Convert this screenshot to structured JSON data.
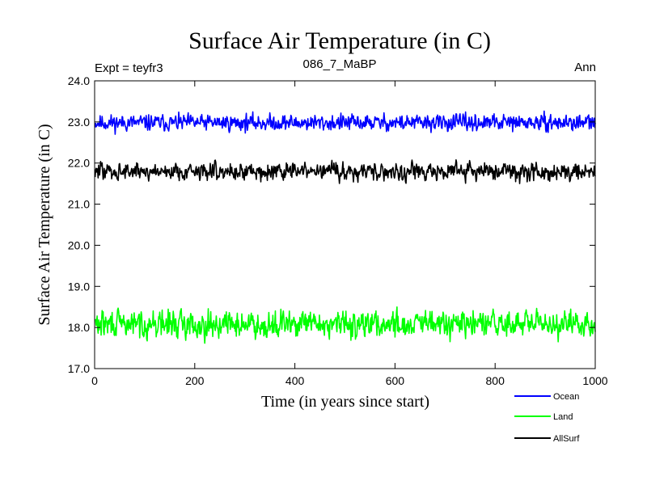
{
  "chart_data": {
    "type": "line",
    "title": "Surface Air Temperature (in C)",
    "subtitle_left": "Expt = teyfr3",
    "subtitle_center": "086_7_MaBP",
    "subtitle_right": "Ann",
    "xlabel": "Time (in years since start)",
    "ylabel": "Surface Air Temperature (in C)",
    "xlim": [
      0,
      1000
    ],
    "ylim": [
      17.0,
      24.0
    ],
    "x_ticks": [
      0,
      200,
      400,
      600,
      800,
      1000
    ],
    "x_tick_labels": [
      "0",
      "200",
      "400",
      "600",
      "800",
      "1000"
    ],
    "y_ticks": [
      17.0,
      18.0,
      19.0,
      20.0,
      21.0,
      22.0,
      23.0,
      24.0
    ],
    "y_tick_labels": [
      "17.0",
      "18.0",
      "19.0",
      "20.0",
      "21.0",
      "22.0",
      "23.0",
      "24.0"
    ],
    "x_start": 1,
    "x_step": 1,
    "n_points": 1000,
    "series": [
      {
        "name": "Ocean",
        "color": "#0000ff",
        "mean": 22.98,
        "noise_amplitude": 0.09,
        "seed": 11
      },
      {
        "name": "Land",
        "color": "#00ff00",
        "mean": 18.08,
        "noise_amplitude": 0.15,
        "seed": 29
      },
      {
        "name": "AllSurf",
        "color": "#000000",
        "mean": 21.8,
        "noise_amplitude": 0.1,
        "seed": 47
      }
    ]
  }
}
